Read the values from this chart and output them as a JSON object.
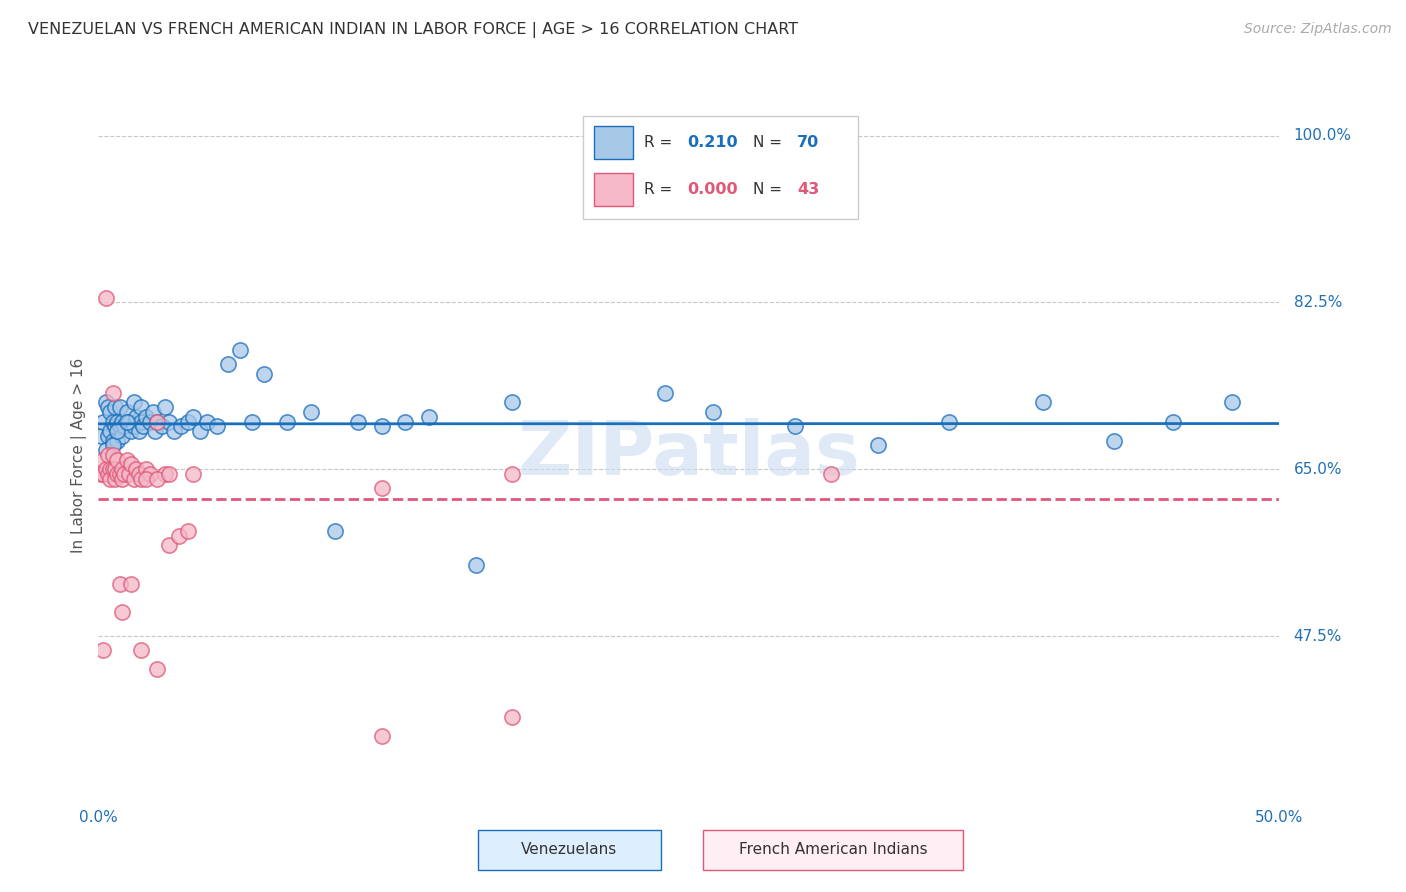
{
  "title": "VENEZUELAN VS FRENCH AMERICAN INDIAN IN LABOR FORCE | AGE > 16 CORRELATION CHART",
  "source": "Source: ZipAtlas.com",
  "ylabel": "In Labor Force | Age > 16",
  "xlim": [
    0.0,
    0.5
  ],
  "ylim": [
    0.3,
    1.03
  ],
  "yticks": [
    0.475,
    0.65,
    0.825,
    1.0
  ],
  "ytick_labels": [
    "47.5%",
    "65.0%",
    "82.5%",
    "100.0%"
  ],
  "xticks": [
    0.0,
    0.125,
    0.25,
    0.375,
    0.5
  ],
  "xtick_labels": [
    "0.0%",
    "",
    "",
    "",
    "50.0%"
  ],
  "venezuelan_R": "0.210",
  "venezuelan_N": "70",
  "fai_R": "0.000",
  "fai_N": "43",
  "blue_scatter_color": "#a8c8e8",
  "blue_line_color": "#1a6fbd",
  "pink_scatter_color": "#f4b8c8",
  "pink_line_color": "#e05878",
  "watermark": "ZIPatlas",
  "venezuelan_x": [
    0.001,
    0.002,
    0.003,
    0.003,
    0.004,
    0.004,
    0.005,
    0.005,
    0.006,
    0.006,
    0.007,
    0.007,
    0.008,
    0.008,
    0.009,
    0.009,
    0.01,
    0.01,
    0.011,
    0.012,
    0.013,
    0.014,
    0.015,
    0.015,
    0.016,
    0.017,
    0.018,
    0.018,
    0.019,
    0.02,
    0.022,
    0.023,
    0.024,
    0.025,
    0.027,
    0.028,
    0.03,
    0.032,
    0.035,
    0.038,
    0.04,
    0.043,
    0.046,
    0.05,
    0.055,
    0.06,
    0.065,
    0.07,
    0.08,
    0.09,
    0.1,
    0.11,
    0.12,
    0.13,
    0.14,
    0.16,
    0.175,
    0.006,
    0.008,
    0.01,
    0.012,
    0.24,
    0.26,
    0.295,
    0.33,
    0.36,
    0.4,
    0.43,
    0.455,
    0.48
  ],
  "venezuelan_y": [
    0.685,
    0.7,
    0.67,
    0.72,
    0.685,
    0.715,
    0.69,
    0.71,
    0.7,
    0.68,
    0.695,
    0.715,
    0.68,
    0.7,
    0.695,
    0.715,
    0.685,
    0.7,
    0.695,
    0.71,
    0.7,
    0.69,
    0.695,
    0.72,
    0.705,
    0.69,
    0.7,
    0.715,
    0.695,
    0.705,
    0.7,
    0.71,
    0.69,
    0.7,
    0.695,
    0.715,
    0.7,
    0.69,
    0.695,
    0.7,
    0.705,
    0.69,
    0.7,
    0.695,
    0.76,
    0.775,
    0.7,
    0.75,
    0.7,
    0.71,
    0.585,
    0.7,
    0.695,
    0.7,
    0.705,
    0.55,
    0.72,
    0.675,
    0.69,
    0.645,
    0.7,
    0.73,
    0.71,
    0.695,
    0.675,
    0.7,
    0.72,
    0.68,
    0.7,
    0.72
  ],
  "fai_x": [
    0.001,
    0.002,
    0.002,
    0.003,
    0.004,
    0.004,
    0.005,
    0.005,
    0.006,
    0.006,
    0.007,
    0.007,
    0.008,
    0.008,
    0.009,
    0.01,
    0.01,
    0.011,
    0.012,
    0.013,
    0.014,
    0.015,
    0.016,
    0.017,
    0.018,
    0.02,
    0.022,
    0.025,
    0.028,
    0.03,
    0.034,
    0.038,
    0.003,
    0.006,
    0.009,
    0.014,
    0.02,
    0.025,
    0.03,
    0.04,
    0.12,
    0.175,
    0.31
  ],
  "fai_y": [
    0.645,
    0.645,
    0.66,
    0.65,
    0.645,
    0.665,
    0.65,
    0.64,
    0.65,
    0.665,
    0.64,
    0.65,
    0.645,
    0.66,
    0.645,
    0.64,
    0.65,
    0.645,
    0.66,
    0.645,
    0.655,
    0.64,
    0.65,
    0.645,
    0.64,
    0.65,
    0.645,
    0.7,
    0.645,
    0.57,
    0.58,
    0.585,
    0.83,
    0.73,
    0.53,
    0.53,
    0.64,
    0.64,
    0.645,
    0.645,
    0.63,
    0.645,
    0.645
  ],
  "fai_outlier_x": [
    0.002,
    0.01,
    0.018,
    0.025,
    0.12,
    0.175
  ],
  "fai_outlier_y": [
    0.46,
    0.5,
    0.46,
    0.44,
    0.37,
    0.39
  ]
}
